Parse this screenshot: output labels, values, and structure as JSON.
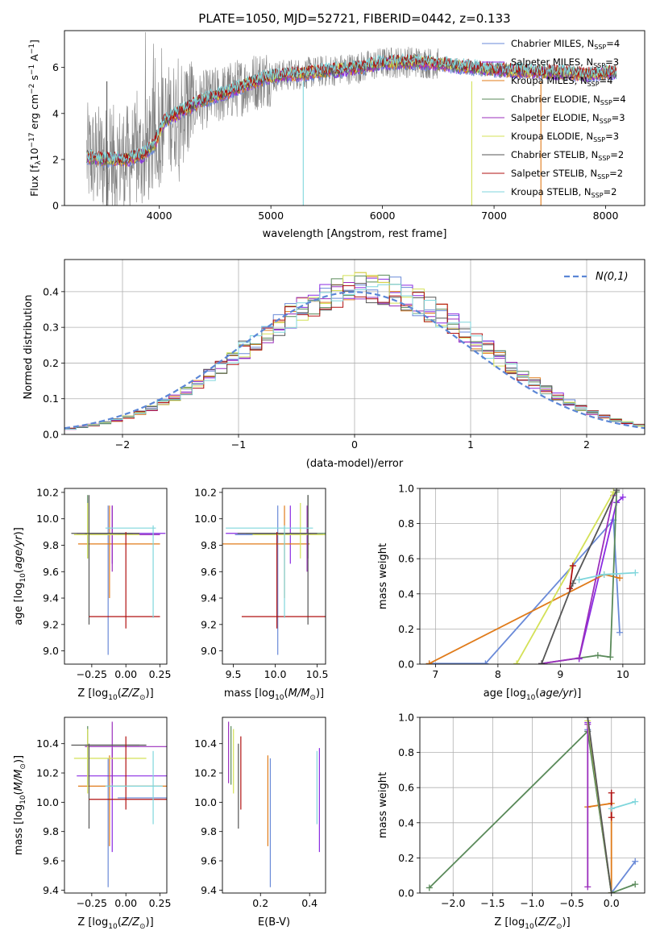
{
  "title": "PLATE=1050, MJD=52721, FIBERID=0442, z=0.133",
  "colors": {
    "Chabrier MILES": "#6a8ad8",
    "Salpeter MILES": "#8a2be2",
    "Kroupa MILES": "#e07b1a",
    "Chabrier ELODIE": "#5a8a5a",
    "Salpeter ELODIE": "#9b2fbd",
    "Kroupa ELODIE": "#d4e157",
    "Chabrier STELIB": "#555555",
    "Salpeter STELIB": "#b01010",
    "Kroupa STELIB": "#7fd6dc",
    "Salpeter MILES (E(B-V) panel)": "#e377c2",
    "spectrum": "#808080",
    "normal": "#5b86d6"
  },
  "chart_data": [
    {
      "type": "line",
      "panel": "spectrum",
      "xlabel": "wavelength [Angstrom, rest frame]",
      "ylabel_main": "Flux [f",
      "ylabel_parts": [
        "λ",
        "10",
        "−17",
        " erg cm",
        "−2",
        " s",
        "−1",
        " A",
        "−1",
        "]"
      ],
      "xticks": [
        "4000",
        "5000",
        "6000",
        "7000",
        "8000"
      ],
      "yticks": [
        "0",
        "2",
        "4",
        "6"
      ],
      "xlim": [
        3150,
        8350
      ],
      "ylim": [
        0,
        7.6
      ],
      "legend": [
        {
          "model": "Chabrier MILES",
          "nssp": "4"
        },
        {
          "model": "Salpeter MILES",
          "nssp": "3"
        },
        {
          "model": "Kroupa MILES",
          "nssp": "4"
        },
        {
          "model": "Chabrier ELODIE",
          "nssp": "4"
        },
        {
          "model": "Salpeter ELODIE",
          "nssp": "3"
        },
        {
          "model": "Kroupa ELODIE",
          "nssp": "3"
        },
        {
          "model": "Chabrier STELIB",
          "nssp": "2"
        },
        {
          "model": "Salpeter STELIB",
          "nssp": "2"
        },
        {
          "model": "Kroupa STELIB",
          "nssp": "2"
        }
      ],
      "nssp_label": "N",
      "nssp_sub": "SSP",
      "continuum": {
        "x": [
          3350,
          3500,
          3700,
          3850,
          3950,
          4050,
          4200,
          4400,
          4600,
          4800,
          5000,
          5200,
          5400,
          5600,
          5800,
          6000,
          6300,
          6600,
          6900,
          7200,
          7500,
          7800,
          8100
        ],
        "y": [
          2.1,
          2.0,
          2.0,
          2.2,
          2.6,
          3.7,
          4.1,
          4.6,
          4.9,
          5.3,
          5.6,
          5.7,
          5.8,
          5.9,
          6.0,
          6.2,
          6.25,
          6.1,
          5.95,
          5.85,
          5.8,
          5.7,
          5.8
        ]
      }
    },
    {
      "type": "bar",
      "panel": "residual-histogram",
      "xlabel": "(data-model)/error",
      "ylabel": "Normed distribution",
      "xticks": [
        "−2",
        "−1",
        "0",
        "1",
        "2"
      ],
      "yticks": [
        "0.0",
        "0.1",
        "0.2",
        "0.3",
        "0.4"
      ],
      "xlim": [
        -2.5,
        2.5
      ],
      "ylim": [
        0,
        0.49
      ],
      "grid": true,
      "legend": "N(0,1)",
      "legend_placement": "upper right",
      "bin_width": 0.1
    },
    {
      "type": "scatter",
      "panel": "age-vs-Z",
      "xlabel": "Z [log10(Z/Z⊙)]",
      "ylabel": "age [log10(age/yr)]",
      "xticks": [
        "−0.25",
        "0.00",
        "0.25"
      ],
      "yticks": [
        "9.0",
        "9.2",
        "9.4",
        "9.6",
        "9.8",
        "10.0",
        "10.2"
      ],
      "xlim": [
        -0.45,
        0.3
      ],
      "ylim": [
        8.9,
        10.23
      ]
    },
    {
      "type": "scatter",
      "panel": "age-vs-mass",
      "xlabel": "mass [log10(M/M⊙)]",
      "xticks": [
        "9.5",
        "10.0",
        "10.5"
      ],
      "yticks": [
        "9.0",
        "9.2",
        "9.4",
        "9.6",
        "9.8",
        "10.0",
        "10.2"
      ],
      "xlim": [
        9.37,
        10.6
      ],
      "ylim": [
        8.9,
        10.23
      ]
    },
    {
      "type": "line",
      "panel": "mass-weight-vs-age",
      "xlabel": "age [log10(age/yr)]",
      "ylabel": "mass weight",
      "xticks": [
        "7",
        "8",
        "9",
        "10"
      ],
      "yticks": [
        "0.0",
        "0.2",
        "0.4",
        "0.6",
        "0.8",
        "1.0"
      ],
      "xlim": [
        6.75,
        10.35
      ],
      "ylim": [
        0,
        1
      ],
      "grid": true
    },
    {
      "type": "scatter",
      "panel": "mass-vs-Z",
      "xlabel": "Z [log10(Z/Z⊙)]",
      "ylabel": "mass [log10(M/M⊙)]",
      "xticks": [
        "−0.25",
        "0.00",
        "0.25"
      ],
      "yticks": [
        "9.4",
        "9.6",
        "9.8",
        "10.0",
        "10.2",
        "10.4"
      ],
      "xlim": [
        -0.45,
        0.3
      ],
      "ylim": [
        9.38,
        10.58
      ]
    },
    {
      "type": "scatter",
      "panel": "mass-vs-EBV",
      "xlabel": "E(B-V)",
      "xticks": [
        "0.2",
        "0.4"
      ],
      "yticks": [
        "9.4",
        "9.6",
        "9.8",
        "10.0",
        "10.2",
        "10.4"
      ],
      "xlim": [
        0.045,
        0.465
      ],
      "ylim": [
        9.38,
        10.58
      ]
    },
    {
      "type": "line",
      "panel": "mass-weight-vs-Z",
      "xlabel": "Z [log10(Z/Z⊙)]",
      "ylabel": "mass weight",
      "xticks": [
        "−2.0",
        "−1.5",
        "−1.0",
        "−0.5",
        "0.0"
      ],
      "yticks": [
        "0.0",
        "0.2",
        "0.4",
        "0.6",
        "0.8",
        "1.0"
      ],
      "xlim": [
        -2.42,
        0.42
      ],
      "ylim": [
        0,
        1
      ],
      "grid": true
    }
  ],
  "models": [
    {
      "name": "Chabrier MILES",
      "Z": [
        -0.06,
        0.25
      ],
      "Zc": -0.13,
      "age": [
        8.97,
        10.1
      ],
      "agec": 9.88,
      "mass": [
        9.97,
        10.05
      ],
      "massc": 10.03,
      "ebv": 0.24,
      "merr": [
        9.42,
        10.3
      ],
      "mw_age": [
        [
          6.9,
          0.003
        ],
        [
          7.8,
          0.003
        ],
        [
          9.85,
          0.82
        ],
        [
          9.95,
          0.18
        ]
      ],
      "mw_Z": [
        [
          -0.3,
          0.93
        ],
        [
          0.0,
          0.0
        ],
        [
          0.3,
          0.18
        ]
      ]
    },
    {
      "name": "Salpeter MILES",
      "Z": [
        -0.36,
        0.29
      ],
      "Zc": -0.1,
      "age": [
        9.66,
        10.1
      ],
      "agec": 9.89,
      "mass": [
        9.86,
        10.33
      ],
      "massc": 10.18,
      "ebv": 0.44,
      "merr": [
        9.66,
        10.37
      ],
      "mw_age": [
        [
          9.3,
          0.03
        ],
        [
          9.9,
          0.92
        ],
        [
          10.0,
          0.95
        ]
      ],
      "mw_Z": [
        [
          -0.3,
          0.92
        ],
        [
          -0.3,
          0.97
        ]
      ]
    },
    {
      "name": "Kroupa MILES",
      "Z": [
        -0.35,
        0.25
      ],
      "Zc": -0.12,
      "age": [
        9.4,
        10.1
      ],
      "agec": 9.81,
      "mass": [
        9.41,
        10.31
      ],
      "massc": 10.11,
      "ebv": 0.23,
      "merr": [
        9.7,
        10.32
      ],
      "mw_age": [
        [
          6.9,
          0.003
        ],
        [
          9.7,
          0.51
        ],
        [
          9.95,
          0.49
        ]
      ],
      "mw_Z": [
        [
          -0.3,
          0.49
        ],
        [
          0.0,
          0.51
        ],
        [
          0.0,
          0.0
        ]
      ]
    },
    {
      "name": "Chabrier ELODIE",
      "Z": [
        -0.3,
        0.05
      ],
      "Zc": -0.28,
      "age": [
        9.7,
        10.18
      ],
      "agec": 9.89,
      "mass": [
        10.1,
        10.5
      ],
      "massc": 10.39,
      "ebv": 0.08,
      "merr": [
        10.12,
        10.52
      ],
      "mw_age": [
        [
          8.7,
          0.003
        ],
        [
          9.6,
          0.05
        ],
        [
          9.8,
          0.04
        ],
        [
          9.9,
          0.98
        ]
      ],
      "mw_Z": [
        [
          -2.3,
          0.03
        ],
        [
          -0.3,
          0.92
        ],
        [
          0.0,
          0.0
        ],
        [
          0.3,
          0.05
        ]
      ]
    },
    {
      "name": "Salpeter ELODIE",
      "Z": [
        -0.3,
        0.25
      ],
      "Zc": -0.1,
      "age": [
        9.6,
        10.1
      ],
      "agec": 9.88,
      "mass": [
        10.2,
        10.47
      ],
      "massc": 10.38,
      "ebv": 0.07,
      "merr": [
        10.13,
        10.55
      ],
      "mw_age": [
        [
          8.7,
          0.003
        ],
        [
          9.3,
          0.035
        ],
        [
          9.85,
          0.96
        ]
      ],
      "mw_Z": [
        [
          -0.3,
          0.96
        ],
        [
          -0.3,
          0.035
        ]
      ]
    },
    {
      "name": "Kroupa ELODIE",
      "Z": [
        -0.38,
        0.1
      ],
      "Zc": -0.28,
      "age": [
        9.7,
        10.12
      ],
      "agec": 9.88,
      "mass": [
        10.18,
        10.5
      ],
      "massc": 10.3,
      "ebv": 0.09,
      "merr": [
        10.06,
        10.5
      ],
      "mw_age": [
        [
          8.3,
          0.003
        ],
        [
          9.85,
          0.98
        ]
      ],
      "mw_Z": [
        [
          -0.3,
          0.98
        ],
        [
          0.0,
          0.0
        ]
      ]
    },
    {
      "name": "Chabrier STELIB",
      "Z": [
        -0.4,
        0.1
      ],
      "Zc": -0.27,
      "age": [
        9.2,
        10.18
      ],
      "agec": 9.89,
      "mass": [
        10.0,
        10.4
      ],
      "massc": 10.39,
      "ebv": 0.11,
      "merr": [
        9.82,
        10.4
      ],
      "mw_age": [
        [
          8.7,
          0.003
        ],
        [
          9.2,
          0.46
        ],
        [
          9.9,
          0.99
        ]
      ],
      "mw_Z": [
        [
          -0.3,
          1.0
        ],
        [
          0.0,
          0.0
        ]
      ]
    },
    {
      "name": "Salpeter STELIB",
      "Z": [
        -0.27,
        0.25
      ],
      "Zc": 0.0,
      "age": [
        9.17,
        9.9
      ],
      "agec": 9.26,
      "mass": [
        10.05,
        10.5
      ],
      "massc": 10.02,
      "ebv": 0.12,
      "merr": [
        9.95,
        10.45
      ],
      "mw_age": [
        [
          9.15,
          0.43
        ],
        [
          9.2,
          0.56
        ]
      ],
      "mw_Z": [
        [
          0.0,
          0.43
        ],
        [
          0.0,
          0.57
        ]
      ]
    },
    {
      "name": "Kroupa STELIB",
      "Z": [
        -0.15,
        0.22
      ],
      "Zc": 0.2,
      "age": [
        9.25,
        9.95
      ],
      "agec": 9.93,
      "mass": [
        9.86,
        10.35
      ],
      "massc": 10.11,
      "ebv": 0.43,
      "merr": [
        9.85,
        10.35
      ],
      "mw_age": [
        [
          9.3,
          0.48
        ],
        [
          9.7,
          0.51
        ],
        [
          10.2,
          0.52
        ]
      ],
      "mw_Z": [
        [
          0.0,
          0.48
        ],
        [
          0.3,
          0.52
        ]
      ]
    }
  ]
}
